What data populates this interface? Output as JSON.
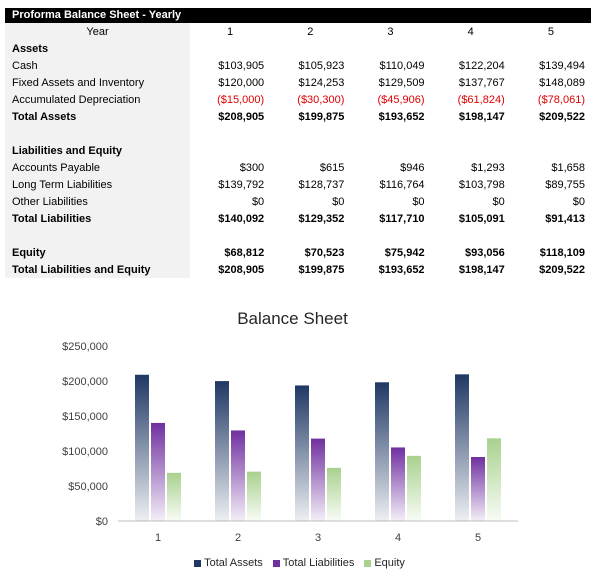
{
  "sheet": {
    "title": "Proforma Balance Sheet - Yearly",
    "header": {
      "label": "Year",
      "years": [
        "1",
        "2",
        "3",
        "4",
        "5"
      ]
    },
    "rows": [
      {
        "label": "Assets",
        "values": [
          "",
          "",
          "",
          "",
          ""
        ],
        "bold": true
      },
      {
        "label": "Cash",
        "values": [
          "$103,905",
          "$105,923",
          "$110,049",
          "$122,204",
          "$139,494"
        ]
      },
      {
        "label": "Fixed Assets and Inventory",
        "values": [
          "$120,000",
          "$124,253",
          "$129,509",
          "$137,767",
          "$148,089"
        ]
      },
      {
        "label": "Accumulated Depreciation",
        "values": [
          "($15,000)",
          "($30,300)",
          "($45,906)",
          "($61,824)",
          "($78,061)"
        ],
        "negative": true
      },
      {
        "label": "Total Assets",
        "values": [
          "$208,905",
          "$199,875",
          "$193,652",
          "$198,147",
          "$209,522"
        ],
        "bold": true
      },
      {
        "label": "",
        "values": [
          "",
          "",
          "",
          "",
          ""
        ]
      },
      {
        "label": "Liabilities and Equity",
        "values": [
          "",
          "",
          "",
          "",
          ""
        ],
        "bold": true
      },
      {
        "label": "Accounts Payable",
        "values": [
          "$300",
          "$615",
          "$946",
          "$1,293",
          "$1,658"
        ]
      },
      {
        "label": "Long Term Liabilities",
        "values": [
          "$139,792",
          "$128,737",
          "$116,764",
          "$103,798",
          "$89,755"
        ]
      },
      {
        "label": "Other Liabilities",
        "values": [
          "$0",
          "$0",
          "$0",
          "$0",
          "$0"
        ]
      },
      {
        "label": "Total Liabilities",
        "values": [
          "$140,092",
          "$129,352",
          "$117,710",
          "$105,091",
          "$91,413"
        ],
        "bold": true
      },
      {
        "label": "",
        "values": [
          "",
          "",
          "",
          "",
          ""
        ]
      },
      {
        "label": "Equity",
        "values": [
          "$68,812",
          "$70,523",
          "$75,942",
          "$93,056",
          "$118,109"
        ],
        "bold": true
      },
      {
        "label": "Total Liabilities and Equity",
        "values": [
          "$208,905",
          "$199,875",
          "$193,652",
          "$198,147",
          "$209,522"
        ],
        "bold": true
      }
    ]
  },
  "chart_data": {
    "type": "bar",
    "title": "Balance Sheet",
    "categories": [
      "1",
      "2",
      "3",
      "4",
      "5"
    ],
    "ylim": [
      0,
      250000
    ],
    "yticks": [
      0,
      50000,
      100000,
      150000,
      200000,
      250000
    ],
    "ytick_labels": [
      "$0",
      "$50,000",
      "$100,000",
      "$150,000",
      "$200,000",
      "$250,000"
    ],
    "grid": false,
    "legend": "bottom",
    "series": [
      {
        "name": "Total Assets",
        "color": "#1f3864",
        "values": [
          208905,
          199875,
          193652,
          198147,
          209522
        ]
      },
      {
        "name": "Total Liabilities",
        "color": "#7030a0",
        "values": [
          140092,
          129352,
          117710,
          105091,
          91413
        ]
      },
      {
        "name": "Equity",
        "color": "#a9d18e",
        "values": [
          68812,
          70523,
          75942,
          93056,
          118109
        ]
      }
    ]
  }
}
